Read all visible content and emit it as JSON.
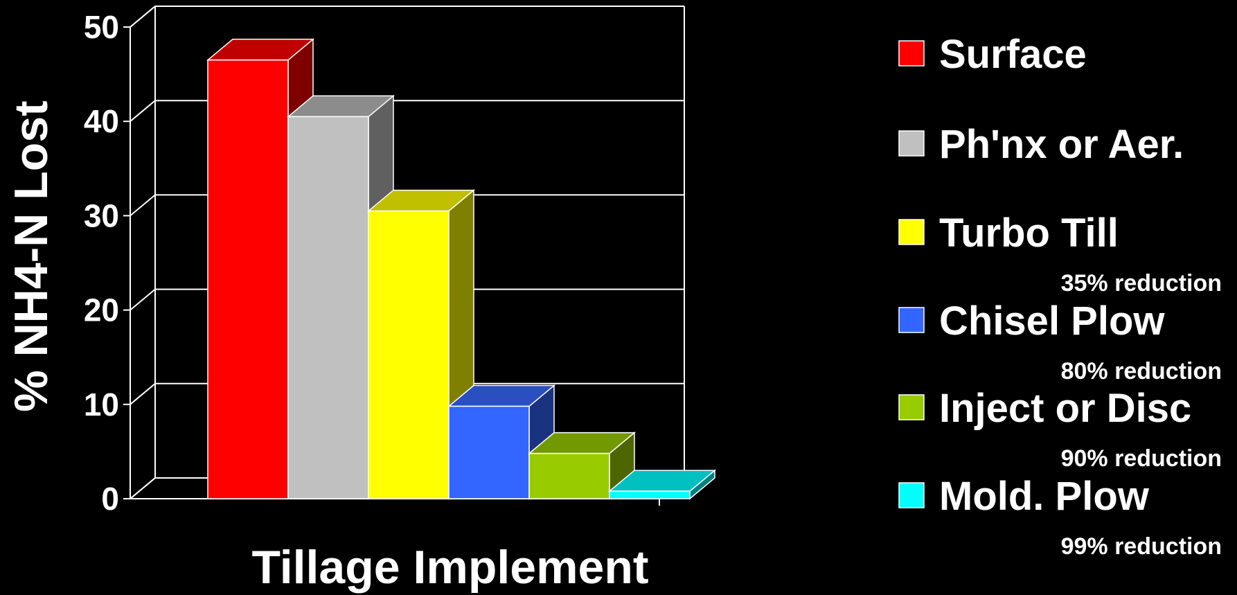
{
  "chart_data": {
    "type": "bar",
    "style": "3d",
    "xlabel": "Tillage Implement",
    "ylabel": "% NH4-N Lost",
    "ylim": [
      0,
      50
    ],
    "yticks": [
      0,
      10,
      20,
      30,
      40,
      50
    ],
    "grid": true,
    "legend_position": "right",
    "series": [
      {
        "name": "Surface",
        "value": 46.5,
        "color": "#ff0000",
        "side_color": "#7f0000",
        "top_color": "#c00000",
        "note": ""
      },
      {
        "name": "Ph'nx or Aer.",
        "value": 40.5,
        "color": "#c0c0c0",
        "side_color": "#606060",
        "top_color": "#8c8c8c",
        "note": ""
      },
      {
        "name": "Turbo Till",
        "value": 30.5,
        "color": "#ffff00",
        "side_color": "#808000",
        "top_color": "#c0c000",
        "note": "35% reduction"
      },
      {
        "name": "Chisel Plow",
        "value": 9.8,
        "color": "#3366ff",
        "side_color": "#1a3380",
        "top_color": "#2a4fc0",
        "note": "80% reduction"
      },
      {
        "name": "Inject or Disc",
        "value": 4.8,
        "color": "#99cc00",
        "side_color": "#4d6600",
        "top_color": "#739900",
        "note": "90% reduction"
      },
      {
        "name": "Mold. Plow",
        "value": 0.8,
        "color": "#00ffff",
        "side_color": "#008080",
        "top_color": "#00c0c0",
        "note": "99% reduction"
      }
    ]
  }
}
